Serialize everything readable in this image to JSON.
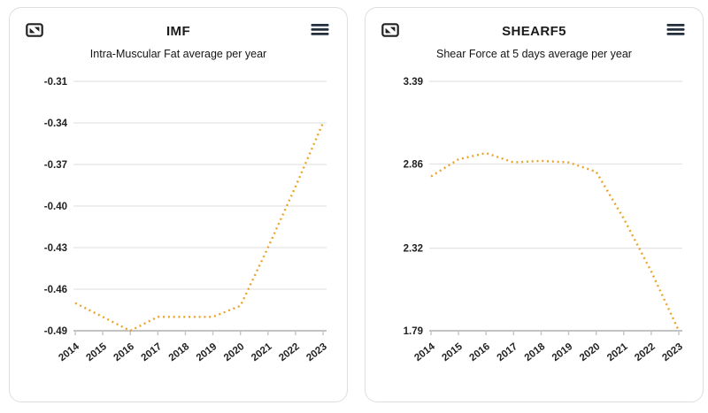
{
  "theme": {
    "line_color": "#e9a52b",
    "grid_color": "#e4e4e4",
    "axis_color": "#c3c3c3",
    "tick_text_color": "#222222",
    "icon_color": "#242f3d",
    "card_border_color": "#dedede"
  },
  "cards": [
    {
      "title": "IMF",
      "subtitle": "Intra-Muscular Fat average per year",
      "left_icon": "expand-icon",
      "right_icon": "menu-icon"
    },
    {
      "title": "SHEARF5",
      "subtitle": "Shear Force at 5 days average per year",
      "left_icon": "expand-icon",
      "right_icon": "menu-icon"
    }
  ],
  "chart_data": [
    {
      "type": "line",
      "line_style": "dotted",
      "line_color": "#e9a52b",
      "title": "IMF",
      "subtitle": "Intra-Muscular Fat average per year",
      "categories": [
        "2014",
        "2015",
        "2016",
        "2017",
        "2018",
        "2019",
        "2020",
        "2021",
        "2022",
        "2023"
      ],
      "values": [
        -0.47,
        -0.48,
        -0.49,
        -0.48,
        -0.48,
        -0.48,
        -0.472,
        -0.43,
        -0.386,
        -0.34
      ],
      "y_tick_labels": [
        "-0.31",
        "-0.34",
        "-0.37",
        "-0.40",
        "-0.43",
        "-0.46",
        "-0.49"
      ],
      "ylim": [
        -0.49,
        -0.31
      ],
      "grid": true,
      "legend": false,
      "xlabel": "",
      "ylabel": ""
    },
    {
      "type": "line",
      "line_style": "dotted",
      "line_color": "#e9a52b",
      "title": "SHEARF5",
      "subtitle": "Shear Force at 5 days average per year",
      "categories": [
        "2014",
        "2015",
        "2016",
        "2017",
        "2018",
        "2019",
        "2020",
        "2021",
        "2022",
        "2023"
      ],
      "values": [
        2.78,
        2.89,
        2.93,
        2.87,
        2.88,
        2.87,
        2.81,
        2.51,
        2.17,
        1.79
      ],
      "y_tick_labels": [
        "3.39",
        "2.86",
        "2.32",
        "1.79"
      ],
      "ylim": [
        1.79,
        3.39
      ],
      "grid": true,
      "legend": false,
      "xlabel": "",
      "ylabel": ""
    }
  ]
}
